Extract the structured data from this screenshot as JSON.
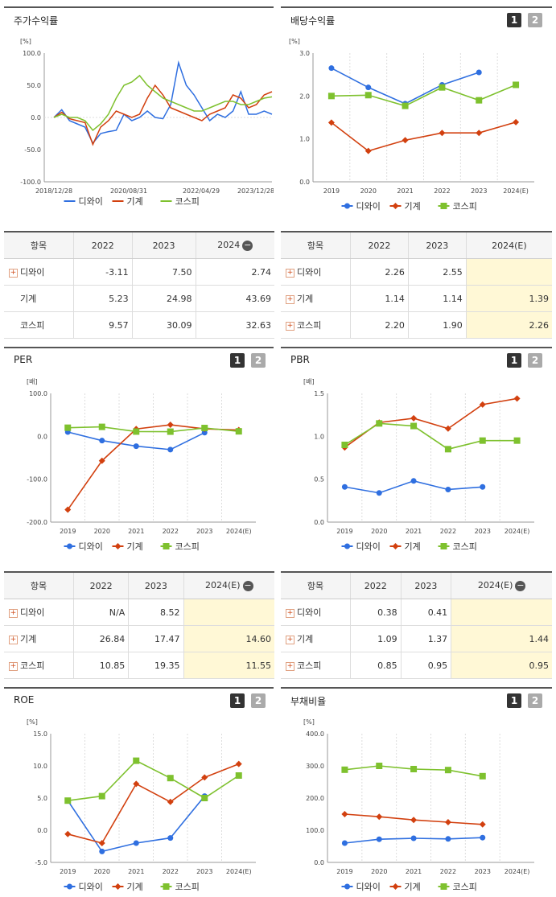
{
  "colors": {
    "diwai": "#2f6fe0",
    "gigye": "#d2400f",
    "kospi": "#7ec12e"
  },
  "chart_data": [
    {
      "id": "c0",
      "type": "line",
      "title": "주가수익률",
      "unit": "[%]",
      "x_labels": [
        "2018/12/28",
        "2020/08/31",
        "2022/04/29",
        "2023/12/28"
      ],
      "ylim": [
        -100,
        100
      ],
      "yticks": [
        "100.0",
        "50.0",
        "0.0",
        "-50.0",
        "-100.0"
      ],
      "series": [
        {
          "name": "디와이",
          "values": [
            0,
            12,
            -5,
            -10,
            -15,
            -40,
            -25,
            -22,
            -20,
            5,
            -5,
            0,
            10,
            0,
            -2,
            20,
            85,
            50,
            35,
            15,
            -5,
            5,
            0,
            10,
            40,
            5,
            5,
            10,
            5
          ]
        },
        {
          "name": "기계",
          "values": [
            0,
            8,
            -2,
            -5,
            -8,
            -42,
            -15,
            -5,
            10,
            5,
            0,
            5,
            30,
            50,
            35,
            15,
            10,
            5,
            0,
            -5,
            5,
            10,
            15,
            35,
            30,
            15,
            20,
            35,
            40
          ]
        },
        {
          "name": "코스피",
          "values": [
            0,
            5,
            0,
            0,
            -5,
            -20,
            -10,
            5,
            30,
            50,
            55,
            65,
            50,
            40,
            30,
            25,
            20,
            15,
            10,
            10,
            15,
            20,
            25,
            25,
            20,
            20,
            25,
            30,
            32
          ]
        }
      ]
    },
    {
      "id": "c1",
      "type": "line",
      "title": "배당수익률",
      "unit": "[%]",
      "categories": [
        "2019",
        "2020",
        "2021",
        "2022",
        "2023",
        "2024(E)"
      ],
      "ylim": [
        0,
        3
      ],
      "yticks": [
        "3.0",
        "2.0",
        "1.0",
        "0.0"
      ],
      "series": [
        {
          "name": "디와이",
          "values": [
            2.65,
            2.2,
            1.82,
            2.26,
            2.55,
            null
          ]
        },
        {
          "name": "기계",
          "values": [
            1.38,
            0.72,
            0.97,
            1.14,
            1.14,
            1.39
          ]
        },
        {
          "name": "코스피",
          "values": [
            2.0,
            2.02,
            1.77,
            2.2,
            1.9,
            2.26
          ]
        }
      ]
    },
    {
      "id": "c2",
      "type": "line",
      "title": "PER",
      "unit": "[배]",
      "categories": [
        "2019",
        "2020",
        "2021",
        "2022",
        "2023",
        "2024(E)"
      ],
      "ylim": [
        -200,
        100
      ],
      "yticks": [
        "100.0",
        "0.0",
        "-100.0",
        "-200.0"
      ],
      "series": [
        {
          "name": "디와이",
          "values": [
            10,
            -10,
            -23,
            -31,
            8.52,
            null
          ]
        },
        {
          "name": "기계",
          "values": [
            -171,
            -57,
            17,
            26.84,
            17.47,
            14.6
          ]
        },
        {
          "name": "코스피",
          "values": [
            20,
            22,
            11,
            10.85,
            19.35,
            11.55
          ]
        }
      ]
    },
    {
      "id": "c3",
      "type": "line",
      "title": "PBR",
      "unit": "[배]",
      "categories": [
        "2019",
        "2020",
        "2021",
        "2022",
        "2023",
        "2024(E)"
      ],
      "ylim": [
        0,
        1.5
      ],
      "yticks": [
        "1.5",
        "1.0",
        "0.5",
        "0.0"
      ],
      "series": [
        {
          "name": "디와이",
          "values": [
            0.41,
            0.34,
            0.48,
            0.38,
            0.41,
            null
          ]
        },
        {
          "name": "기계",
          "values": [
            0.87,
            1.16,
            1.21,
            1.09,
            1.37,
            1.44
          ]
        },
        {
          "name": "코스피",
          "values": [
            0.9,
            1.15,
            1.12,
            0.85,
            0.95,
            0.95
          ]
        }
      ]
    },
    {
      "id": "c4",
      "type": "line",
      "title": "ROE",
      "unit": "[%]",
      "categories": [
        "2019",
        "2020",
        "2021",
        "2022",
        "2023",
        "2024(E)"
      ],
      "ylim": [
        -5,
        15
      ],
      "yticks": [
        "15.0",
        "10.0",
        "5.0",
        "0.0",
        "-5.0"
      ],
      "series": [
        {
          "name": "디와이",
          "values": [
            4.6,
            -3.3,
            -2.0,
            -1.2,
            5.3,
            null
          ]
        },
        {
          "name": "기계",
          "values": [
            -0.6,
            -2.0,
            7.2,
            4.4,
            8.2,
            10.3
          ]
        },
        {
          "name": "코스피",
          "values": [
            4.6,
            5.3,
            10.8,
            8.1,
            5.0,
            8.5
          ]
        }
      ]
    },
    {
      "id": "c5",
      "type": "line",
      "title": "부채비율",
      "unit": "[%]",
      "categories": [
        "2019",
        "2020",
        "2021",
        "2022",
        "2023",
        "2024(E)"
      ],
      "ylim": [
        0,
        400
      ],
      "yticks": [
        "400.0",
        "300.0",
        "200.0",
        "100.0",
        "0.0"
      ],
      "series": [
        {
          "name": "디와이",
          "values": [
            60,
            72,
            75,
            73,
            77,
            null
          ]
        },
        {
          "name": "기계",
          "values": [
            150,
            142,
            132,
            125,
            118,
            null
          ]
        },
        {
          "name": "코스피",
          "values": [
            288,
            300,
            290,
            287,
            268,
            null
          ]
        }
      ]
    }
  ],
  "tables": {
    "t1": {
      "header": [
        "항목",
        "2022",
        "2023",
        "2024"
      ],
      "rows": [
        [
          "디와이",
          "-3.11",
          "7.50",
          "2.74"
        ],
        [
          "기계",
          "5.23",
          "24.98",
          "43.69"
        ],
        [
          "코스피",
          "9.57",
          "30.09",
          "32.63"
        ]
      ]
    },
    "t2": {
      "header": [
        "항목",
        "2022",
        "2023",
        "2024(E)"
      ],
      "rows": [
        [
          "디와이",
          "2.26",
          "2.55",
          ""
        ],
        [
          "기계",
          "1.14",
          "1.14",
          "1.39"
        ],
        [
          "코스피",
          "2.20",
          "1.90",
          "2.26"
        ]
      ]
    },
    "t3": {
      "header": [
        "항목",
        "2022",
        "2023",
        "2024(E)"
      ],
      "rows": [
        [
          "디와이",
          "N/A",
          "8.52",
          ""
        ],
        [
          "기계",
          "26.84",
          "17.47",
          "14.60"
        ],
        [
          "코스피",
          "10.85",
          "19.35",
          "11.55"
        ]
      ]
    },
    "t4": {
      "header": [
        "항목",
        "2022",
        "2023",
        "2024(E)"
      ],
      "rows": [
        [
          "디와이",
          "0.38",
          "0.41",
          ""
        ],
        [
          "기계",
          "1.09",
          "1.37",
          "1.44"
        ],
        [
          "코스피",
          "0.85",
          "0.95",
          "0.95"
        ]
      ]
    }
  },
  "pager": {
    "p1": "1",
    "p2": "2"
  },
  "minus_icon": "−"
}
